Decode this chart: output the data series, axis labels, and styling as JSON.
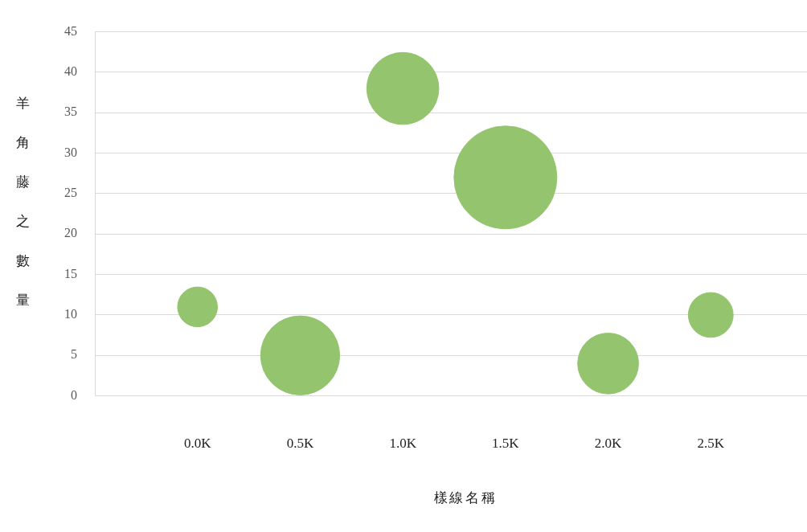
{
  "chart_data": {
    "type": "bubble",
    "xlabel": "樣線名稱",
    "ylabel": "羊角藤之數量",
    "categories": [
      "0.0K",
      "0.5K",
      "1.0K",
      "1.5K",
      "2.0K",
      "2.5K"
    ],
    "values": [
      11,
      5,
      38,
      27,
      4,
      10
    ],
    "sizes": [
      0.15,
      0.59,
      0.49,
      1,
      0.35,
      0.19
    ],
    "color": "#94c56e",
    "ylim": [
      0,
      45
    ],
    "yticks": [
      0,
      5,
      10,
      15,
      20,
      25,
      30,
      35,
      40,
      45
    ],
    "grid": "y",
    "legend": false
  }
}
